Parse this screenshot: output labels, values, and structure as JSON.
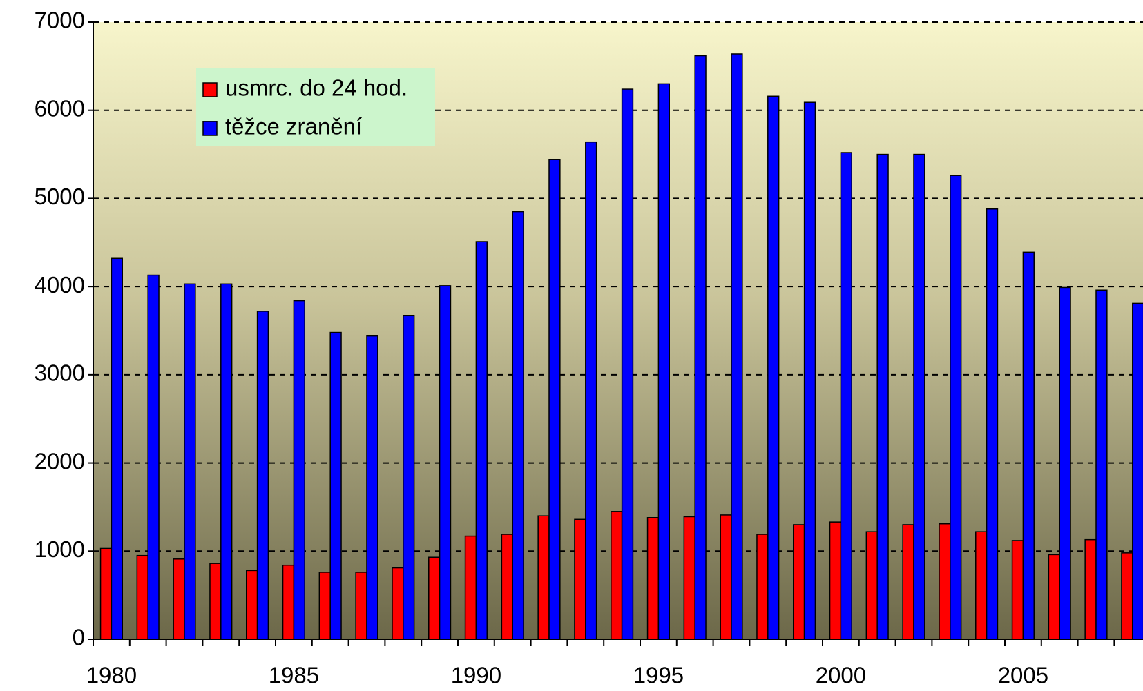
{
  "chart_data": {
    "type": "bar",
    "categories": [
      "1980",
      null,
      null,
      null,
      null,
      "1985",
      null,
      null,
      null,
      null,
      "1990",
      null,
      null,
      null,
      null,
      "1995",
      null,
      null,
      null,
      null,
      "2000",
      null,
      null,
      null,
      null,
      "2005",
      null,
      null,
      null
    ],
    "series": [
      {
        "name": "usmrc. do 24 hod.",
        "color": "#ff0000",
        "values": [
          1030,
          950,
          910,
          860,
          780,
          840,
          760,
          760,
          810,
          930,
          1170,
          1190,
          1400,
          1360,
          1450,
          1380,
          1390,
          1410,
          1190,
          1300,
          1330,
          1220,
          1300,
          1310,
          1220,
          1120,
          960,
          1130,
          980
        ]
      },
      {
        "name": "těžce zranění",
        "color": "#0000ff",
        "values": [
          4320,
          4130,
          4030,
          4030,
          3720,
          3840,
          3480,
          3440,
          3670,
          4010,
          4510,
          4850,
          5440,
          5640,
          6240,
          6300,
          6620,
          6640,
          6160,
          6090,
          5520,
          5500,
          5500,
          5260,
          4880,
          4390,
          3990,
          3960,
          3810
        ]
      }
    ],
    "ylim": [
      0,
      7000
    ],
    "yticks": [
      0,
      1000,
      2000,
      3000,
      4000,
      5000,
      6000,
      7000
    ],
    "grid": true,
    "legend": "upper left"
  }
}
